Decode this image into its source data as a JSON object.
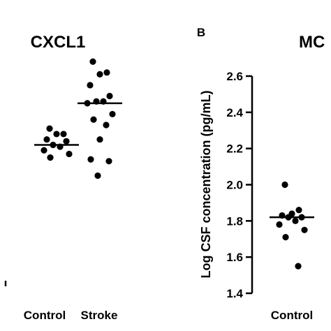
{
  "chart_data": [
    {
      "type": "scatter",
      "title": "CXCL1",
      "categories": [
        "Control",
        "Stroke"
      ],
      "series": [
        {
          "values": [
            2.31,
            2.28,
            2.28,
            2.25,
            2.24,
            2.22,
            2.21,
            2.19,
            2.17,
            2.15
          ]
        },
        {
          "values": [
            2.68,
            2.62,
            2.61,
            2.55,
            2.49,
            2.46,
            2.46,
            2.45,
            2.39,
            2.36,
            2.33,
            2.25,
            2.14,
            2.13,
            2.05
          ]
        }
      ],
      "medians": [
        2.22,
        2.45
      ]
    },
    {
      "type": "scatter",
      "panel_label": "B",
      "title": "MC",
      "ylabel": "Log CSF concentration (pg/mL)",
      "ylim": [
        1.4,
        2.6
      ],
      "yticks": [
        "1.4",
        "1.6",
        "1.8",
        "2.0",
        "2.2",
        "2.4",
        "2.6"
      ],
      "categories": [
        "Control"
      ],
      "series": [
        {
          "values": [
            2.0,
            1.86,
            1.84,
            1.83,
            1.82,
            1.82,
            1.8,
            1.78,
            1.75,
            1.71,
            1.55
          ]
        }
      ],
      "medians": [
        1.82
      ]
    }
  ]
}
